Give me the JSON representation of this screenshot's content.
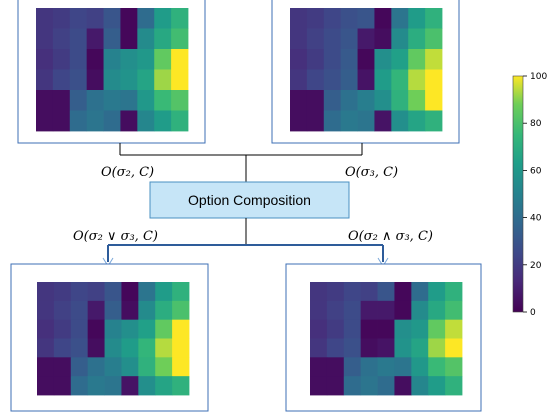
{
  "composition_box": {
    "label": "Option Composition",
    "fill": "#c6e5f7",
    "stroke": "#4a90c2"
  },
  "labels": {
    "top_left": "O(σ₂, C)",
    "top_right": "O(σ₃, C)",
    "bottom_left": "O(σ₂ ∨ σ₃, C)",
    "bottom_right": "O(σ₂ ∧ σ₃, C)"
  },
  "colorbar": {
    "min": 0,
    "max": 100,
    "ticks": [
      "0",
      "20",
      "40",
      "60",
      "80",
      "100"
    ],
    "colormap": "viridis"
  },
  "heatmaps": {
    "top_left": [
      [
        18,
        20,
        24,
        22,
        30,
        2,
        40,
        62,
        72
      ],
      [
        18,
        22,
        26,
        8,
        34,
        2,
        54,
        68,
        78
      ],
      [
        16,
        20,
        26,
        2,
        50,
        56,
        60,
        85,
        100
      ],
      [
        18,
        24,
        28,
        4,
        54,
        58,
        66,
        92,
        100
      ],
      [
        4,
        4,
        34,
        42,
        46,
        44,
        60,
        76,
        82
      ],
      [
        4,
        4,
        40,
        44,
        40,
        4,
        52,
        62,
        72
      ]
    ],
    "top_right": [
      [
        18,
        20,
        24,
        28,
        30,
        2,
        44,
        62,
        72
      ],
      [
        18,
        22,
        26,
        30,
        8,
        4,
        54,
        70,
        80
      ],
      [
        16,
        20,
        26,
        32,
        2,
        56,
        64,
        85,
        95
      ],
      [
        18,
        24,
        28,
        34,
        6,
        62,
        74,
        94,
        100
      ],
      [
        4,
        4,
        34,
        42,
        48,
        56,
        72,
        88,
        100
      ],
      [
        4,
        4,
        40,
        46,
        44,
        6,
        56,
        66,
        72
      ]
    ],
    "bottom_left": [
      [
        18,
        20,
        24,
        22,
        30,
        2,
        44,
        62,
        72
      ],
      [
        18,
        22,
        26,
        8,
        34,
        4,
        54,
        70,
        80
      ],
      [
        16,
        20,
        26,
        2,
        50,
        56,
        64,
        85,
        100
      ],
      [
        18,
        24,
        28,
        4,
        54,
        62,
        74,
        94,
        100
      ],
      [
        4,
        4,
        34,
        42,
        48,
        56,
        72,
        88,
        100
      ],
      [
        4,
        4,
        40,
        46,
        44,
        6,
        56,
        66,
        72
      ]
    ],
    "bottom_right": [
      [
        18,
        20,
        24,
        22,
        30,
        2,
        40,
        62,
        72
      ],
      [
        18,
        22,
        26,
        8,
        8,
        2,
        54,
        68,
        78
      ],
      [
        16,
        20,
        26,
        2,
        2,
        56,
        60,
        85,
        95
      ],
      [
        18,
        24,
        28,
        4,
        6,
        58,
        66,
        92,
        100
      ],
      [
        4,
        4,
        34,
        42,
        46,
        44,
        60,
        76,
        82
      ],
      [
        4,
        4,
        40,
        44,
        40,
        4,
        52,
        62,
        72
      ]
    ]
  },
  "colors": {
    "line": "#2e5c9a",
    "connector": "#000000",
    "panel_border": "#3d6fb5"
  }
}
